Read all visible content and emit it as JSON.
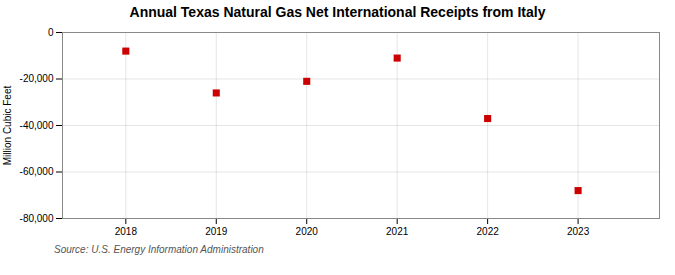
{
  "chart_data": {
    "type": "scatter",
    "title": "Annual Texas Natural Gas Net International Receipts from Italy",
    "ylabel": "Million Cubic Feet",
    "source": "Source: U.S. Energy Information Administration",
    "x": [
      2018,
      2019,
      2020,
      2021,
      2022,
      2023
    ],
    "values": [
      -8000,
      -26000,
      -21000,
      -11000,
      -37000,
      -68000
    ],
    "color": "#cc0000",
    "marker": "square",
    "xlim": [
      2017.3,
      2023.9
    ],
    "xticks": [
      2018,
      2019,
      2020,
      2021,
      2022,
      2023
    ],
    "ylim": [
      -80000,
      0
    ],
    "yticks": [
      0,
      {
        "value": -20000,
        "label": "-20,000"
      },
      {
        "value": -40000,
        "label": "-40,000"
      },
      {
        "value": -60000,
        "label": "-60,000"
      },
      {
        "value": -80000,
        "label": "-80,000"
      }
    ],
    "grid": true
  }
}
